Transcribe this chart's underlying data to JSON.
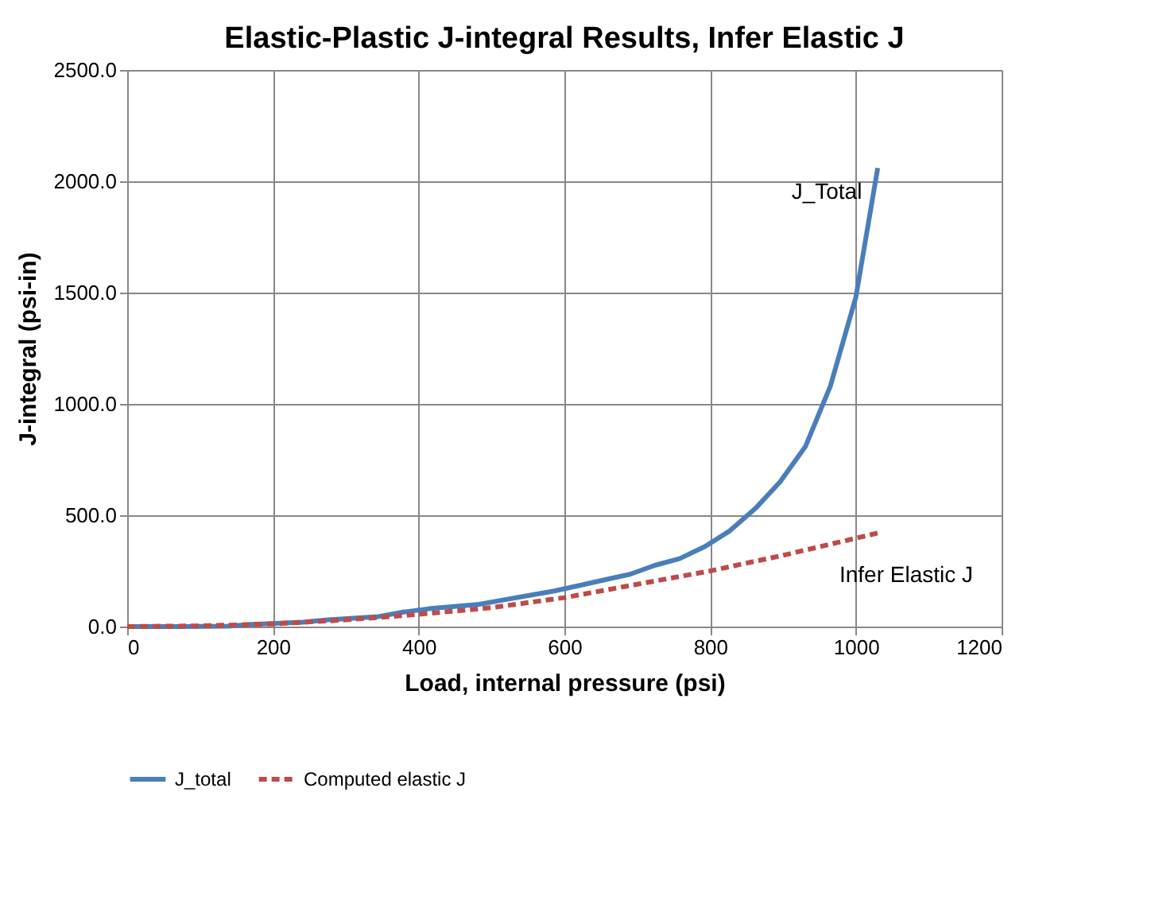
{
  "chart_data": {
    "type": "line",
    "title": "Elastic-Plastic J-integral Results, Infer Elastic J",
    "xlabel": "Load, internal pressure (psi)",
    "ylabel": "J-integral (psi-in)",
    "series": [
      {
        "name": "J_total",
        "color": "#4a7ebb",
        "line_style": "solid",
        "x": [
          0,
          69,
          138,
          172,
          241,
          276,
          345,
          379,
          414,
          483,
          517,
          552,
          586,
          621,
          655,
          690,
          724,
          758,
          793,
          827,
          862,
          896,
          931,
          965,
          1000,
          1030
        ],
        "values": [
          0,
          0,
          2,
          10,
          20,
          30,
          45,
          65,
          80,
          100,
          120,
          140,
          160,
          185,
          210,
          235,
          275,
          305,
          360,
          430,
          530,
          650,
          810,
          1080,
          1480,
          2060
        ]
      },
      {
        "name": "Computed elastic J",
        "color": "#be4b48",
        "line_style": "dashed",
        "x": [
          0,
          100,
          200,
          300,
          400,
          500,
          600,
          700,
          800,
          900,
          1030
        ],
        "values": [
          0,
          3,
          12,
          30,
          55,
          85,
          130,
          190,
          250,
          320,
          420
        ]
      }
    ],
    "annotations": [
      "J_Total",
      "Infer Elastic J"
    ],
    "xlim": [
      0,
      1200
    ],
    "xticks": [
      0,
      200,
      400,
      600,
      800,
      {
        "value": 1000,
        "label": "1000"
      },
      {
        "value": 1200,
        "label": "1200"
      }
    ],
    "ylim": [
      0,
      2500
    ],
    "yticks": [
      {
        "value": 0,
        "label": "0.0"
      },
      {
        "value": 500,
        "label": "500.0"
      },
      {
        "value": 1000,
        "label": "1000.0"
      },
      {
        "value": 1500,
        "label": "1500.0"
      },
      {
        "value": 2000,
        "label": "2000.0"
      },
      {
        "value": 2500,
        "label": "2500.0"
      }
    ],
    "grid": true,
    "legend": "bottom"
  }
}
